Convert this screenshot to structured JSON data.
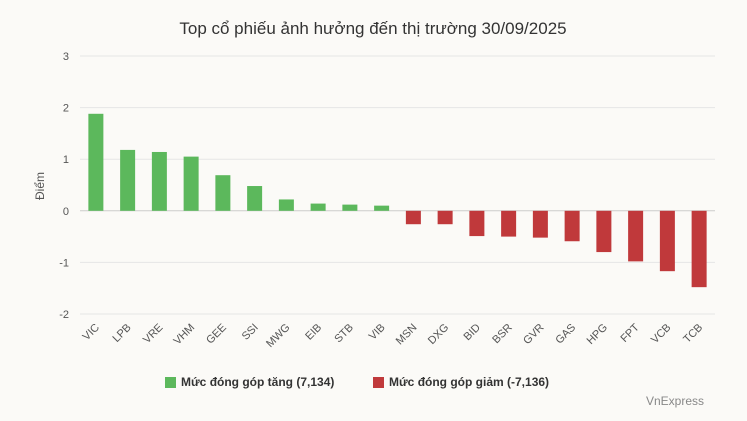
{
  "chart_data": {
    "type": "bar",
    "title": "Top cổ phiếu ảnh hưởng đến thị trường 30/09/2025",
    "ylabel": "Điểm",
    "xlabel": "",
    "ylim": [
      -2,
      3
    ],
    "yticks": [
      3,
      2,
      1,
      0,
      -1,
      -2
    ],
    "grid": true,
    "legend_position": "bottom",
    "categories": [
      "VIC",
      "LPB",
      "VRE",
      "VHM",
      "GEE",
      "SSI",
      "MWG",
      "EIB",
      "STB",
      "VIB",
      "MSN",
      "DXG",
      "BID",
      "BSR",
      "GVR",
      "GAS",
      "HPG",
      "FPT",
      "VCB",
      "TCB"
    ],
    "values": [
      1.88,
      1.18,
      1.14,
      1.05,
      0.69,
      0.48,
      0.22,
      0.14,
      0.12,
      0.1,
      -0.26,
      -0.26,
      -0.49,
      -0.5,
      -0.52,
      -0.59,
      -0.8,
      -0.98,
      -1.17,
      -1.48
    ],
    "series": [
      {
        "name": "Mức đóng góp tăng (7,134)",
        "color": "#5cb85c"
      },
      {
        "name": "Mức đóng góp giảm (-7,136)",
        "color": "#c0393b"
      }
    ],
    "credit": "VnExpress"
  }
}
